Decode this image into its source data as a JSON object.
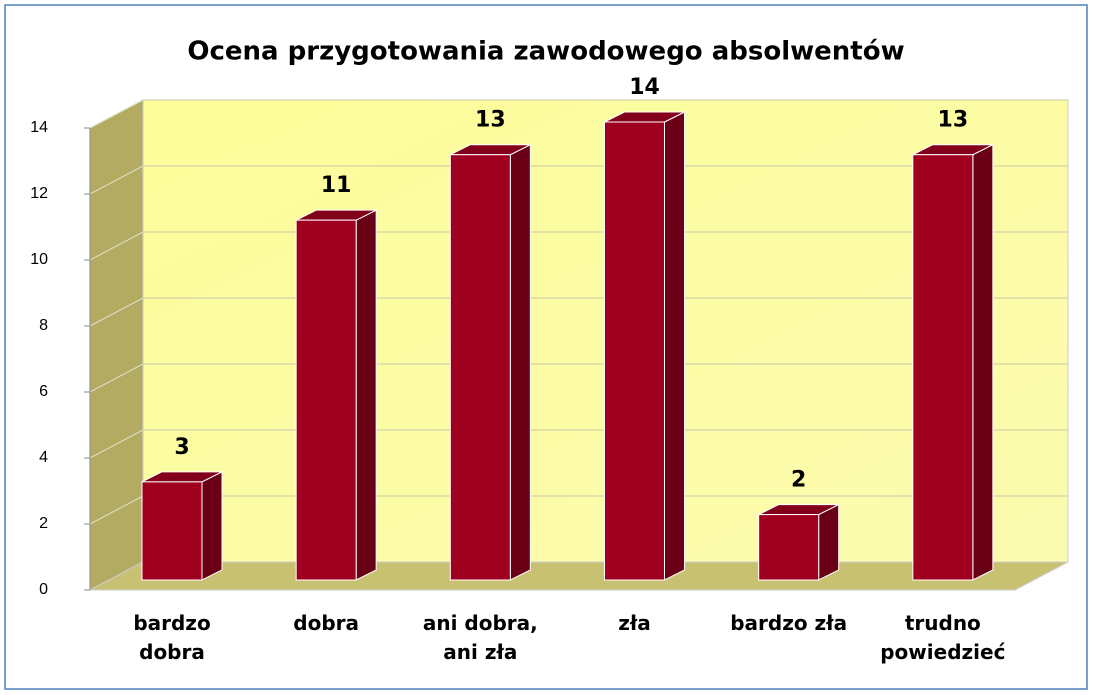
{
  "chart_data": {
    "type": "bar3d",
    "title": "Ocena przygotowania zawodowego absolwentów",
    "categories": [
      "bardzo\ndobra",
      "dobra",
      "ani dobra,\nani zła",
      "zła",
      "bardzo zła",
      "trudno\npowiedzieć"
    ],
    "values": [
      3,
      11,
      13,
      14,
      2,
      13
    ],
    "color": "#a00020",
    "ylim": [
      0,
      14
    ],
    "yticks": [
      0,
      2,
      4,
      6,
      8,
      10,
      12,
      14
    ],
    "grid": true
  }
}
